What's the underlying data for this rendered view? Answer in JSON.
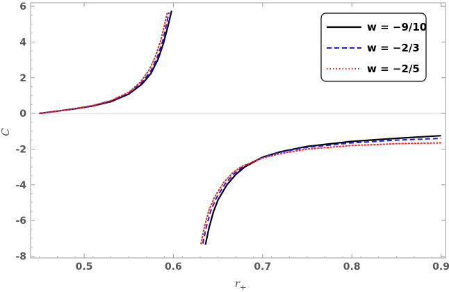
{
  "chart_data": {
    "type": "line",
    "xlabel": "r",
    "xlabel_sub": "+",
    "ylabel": "C",
    "xlim": [
      0.44,
      0.905
    ],
    "ylim": [
      -8.1,
      6.2
    ],
    "x_ticks": [
      0.5,
      0.6,
      0.7,
      0.8,
      0.9
    ],
    "x_tick_labels": [
      "0.5",
      "0.6",
      "0.7",
      "0.8",
      "0.9"
    ],
    "y_ticks": [
      -8,
      -6,
      -4,
      -2,
      0,
      2,
      4,
      6
    ],
    "y_tick_labels": [
      "-8",
      "-6",
      "-4",
      "-2",
      "0",
      "2",
      "4",
      "6"
    ],
    "legend_position": "top-right",
    "series": [
      {
        "name": "w = −9/10",
        "color": "#000000",
        "dash": "solid",
        "branches": [
          [
            [
              0.45,
              0.0
            ],
            [
              0.47,
              0.13
            ],
            [
              0.49,
              0.26
            ],
            [
              0.51,
              0.42
            ],
            [
              0.53,
              0.66
            ],
            [
              0.55,
              1.08
            ],
            [
              0.565,
              1.65
            ],
            [
              0.575,
              2.25
            ],
            [
              0.583,
              3.05
            ],
            [
              0.589,
              3.95
            ],
            [
              0.594,
              4.9
            ],
            [
              0.598,
              5.75
            ]
          ],
          [
            [
              0.636,
              -7.35
            ],
            [
              0.64,
              -6.4
            ],
            [
              0.645,
              -5.5
            ],
            [
              0.65,
              -4.85
            ],
            [
              0.66,
              -4.0
            ],
            [
              0.67,
              -3.42
            ],
            [
              0.68,
              -3.0
            ],
            [
              0.7,
              -2.45
            ],
            [
              0.72,
              -2.15
            ],
            [
              0.75,
              -1.85
            ],
            [
              0.8,
              -1.57
            ],
            [
              0.85,
              -1.4
            ],
            [
              0.9,
              -1.25
            ]
          ]
        ]
      },
      {
        "name": "w = −2/3",
        "color": "#1a1aff",
        "dash": "dashed",
        "branches": [
          [
            [
              0.45,
              0.0
            ],
            [
              0.47,
              0.13
            ],
            [
              0.49,
              0.27
            ],
            [
              0.51,
              0.44
            ],
            [
              0.53,
              0.69
            ],
            [
              0.55,
              1.13
            ],
            [
              0.565,
              1.75
            ],
            [
              0.575,
              2.4
            ],
            [
              0.582,
              3.15
            ],
            [
              0.588,
              4.05
            ],
            [
              0.592,
              4.9
            ],
            [
              0.595,
              5.65
            ]
          ],
          [
            [
              0.633,
              -7.3
            ],
            [
              0.637,
              -6.35
            ],
            [
              0.642,
              -5.45
            ],
            [
              0.648,
              -4.75
            ],
            [
              0.658,
              -3.95
            ],
            [
              0.668,
              -3.38
            ],
            [
              0.678,
              -2.98
            ],
            [
              0.7,
              -2.45
            ],
            [
              0.72,
              -2.17
            ],
            [
              0.75,
              -1.9
            ],
            [
              0.8,
              -1.65
            ],
            [
              0.85,
              -1.5
            ],
            [
              0.9,
              -1.4
            ]
          ]
        ]
      },
      {
        "name": "w = −2/5",
        "color": "#ff2020",
        "dash": "dotted",
        "branches": [
          [
            [
              0.45,
              0.0
            ],
            [
              0.47,
              0.13
            ],
            [
              0.49,
              0.27
            ],
            [
              0.51,
              0.45
            ],
            [
              0.53,
              0.72
            ],
            [
              0.55,
              1.18
            ],
            [
              0.563,
              1.75
            ],
            [
              0.573,
              2.45
            ],
            [
              0.58,
              3.2
            ],
            [
              0.586,
              4.1
            ],
            [
              0.59,
              4.95
            ],
            [
              0.593,
              5.6
            ]
          ],
          [
            [
              0.631,
              -7.3
            ],
            [
              0.635,
              -6.3
            ],
            [
              0.64,
              -5.4
            ],
            [
              0.646,
              -4.7
            ],
            [
              0.656,
              -3.9
            ],
            [
              0.666,
              -3.35
            ],
            [
              0.676,
              -2.98
            ],
            [
              0.7,
              -2.5
            ],
            [
              0.72,
              -2.25
            ],
            [
              0.75,
              -2.0
            ],
            [
              0.8,
              -1.8
            ],
            [
              0.85,
              -1.7
            ],
            [
              0.9,
              -1.65
            ]
          ]
        ]
      }
    ]
  }
}
